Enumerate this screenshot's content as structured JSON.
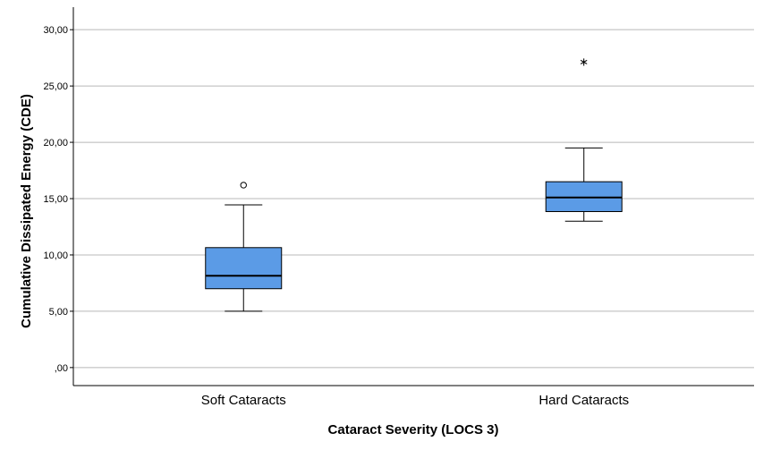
{
  "chart_data": {
    "type": "boxplot",
    "xlabel": "Cataract Severity (LOCS 3)",
    "ylabel": "Cumulative Dissipated Energy (CDE)",
    "ylim": [
      -1.6,
      32.0
    ],
    "yticks": [
      {
        "value": 0,
        "label": ",00"
      },
      {
        "value": 5,
        "label": "5,00"
      },
      {
        "value": 10,
        "label": "10,00"
      },
      {
        "value": 15,
        "label": "15,00"
      },
      {
        "value": 20,
        "label": "20,00"
      },
      {
        "value": 25,
        "label": "25,00"
      },
      {
        "value": 30,
        "label": "30,00"
      }
    ],
    "grid": true,
    "box_color": "#5B9BE6",
    "categories": [
      "Soft Cataracts",
      "Hard Cataracts"
    ],
    "boxes": [
      {
        "name": "Soft Cataracts",
        "whisker_low": 5.0,
        "q1": 7.0,
        "median": 8.15,
        "q3": 10.65,
        "whisker_high": 14.45,
        "outliers": [
          {
            "value": 16.2,
            "marker": "circle"
          }
        ]
      },
      {
        "name": "Hard Cataracts",
        "whisker_low": 13.0,
        "q1": 13.85,
        "median": 15.1,
        "q3": 16.5,
        "whisker_high": 19.5,
        "outliers": [
          {
            "value": 27.2,
            "marker": "star"
          }
        ]
      }
    ]
  }
}
